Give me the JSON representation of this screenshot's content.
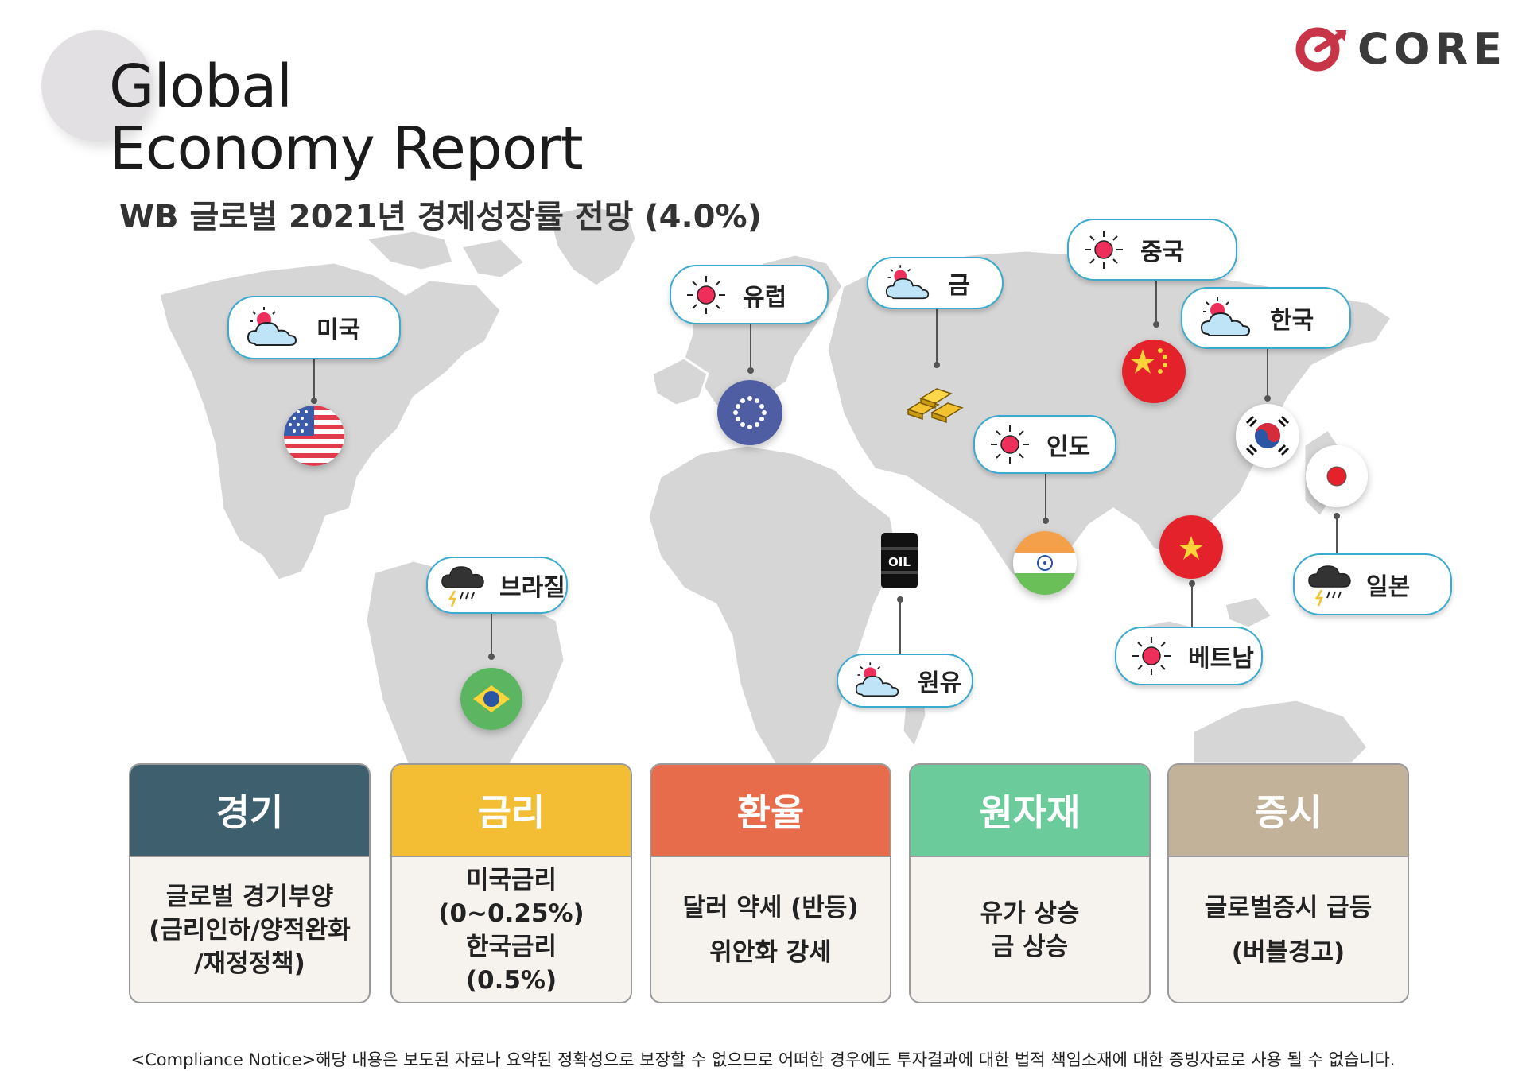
{
  "title": {
    "line1": "Global",
    "line2": "Economy Report"
  },
  "subtitle": "WB 글로벌 2021년 경제성장률 전망 (4.0%)",
  "logo": {
    "text": "CORE",
    "color": "#c83548"
  },
  "markers": [
    {
      "label": "미국",
      "weather": "partly-cloudy-icon",
      "flag": "us-flag-icon"
    },
    {
      "label": "유럽",
      "weather": "sun-icon",
      "flag": "eu-flag-icon"
    },
    {
      "label": "금",
      "weather": "partly-cloudy-icon",
      "flag": "gold-bars-icon"
    },
    {
      "label": "중국",
      "weather": "sun-icon",
      "flag": "china-flag-icon"
    },
    {
      "label": "한국",
      "weather": "partly-cloudy-icon",
      "flag": "korea-flag-icon"
    },
    {
      "label": "인도",
      "weather": "sun-icon",
      "flag": "india-flag-icon"
    },
    {
      "label": "브라질",
      "weather": "storm-icon",
      "flag": "brazil-flag-icon"
    },
    {
      "label": "원유",
      "weather": "partly-cloudy-icon",
      "flag": "oil-barrel-icon"
    },
    {
      "label": "베트남",
      "weather": "sun-icon",
      "flag": "vietnam-flag-icon"
    },
    {
      "label": "일본",
      "weather": "storm-icon",
      "flag": "japan-flag-icon"
    }
  ],
  "cards": [
    {
      "title": "경기",
      "color": "#3e5f6d",
      "lines": [
        "글로벌 경기부양",
        "(금리인하/양적완화",
        "/재정정책)"
      ]
    },
    {
      "title": "금리",
      "color": "#f3bd34",
      "lines": [
        "미국금리",
        "(0~0.25%)",
        "한국금리",
        "(0.5%)"
      ]
    },
    {
      "title": "환율",
      "color": "#e66c4c",
      "lines": [
        "달러 약세 (반등)",
        "위안화 강세"
      ]
    },
    {
      "title": "원자재",
      "color": "#6bcb9b",
      "lines": [
        "유가 상승",
        "금 상승"
      ]
    },
    {
      "title": "증시",
      "color": "#c2b29a",
      "lines": [
        "글로벌증시 급등",
        "(버블경고)"
      ]
    }
  ],
  "notice": "<Compliance Notice>해당 내용은 보도된 자료나 요약된 정확성으로 보장할 수 없으므로 어떠한 경우에도 투자결과에 대한 법적 책임소재에 대한 증빙자료로 사용 될 수 없습니다."
}
